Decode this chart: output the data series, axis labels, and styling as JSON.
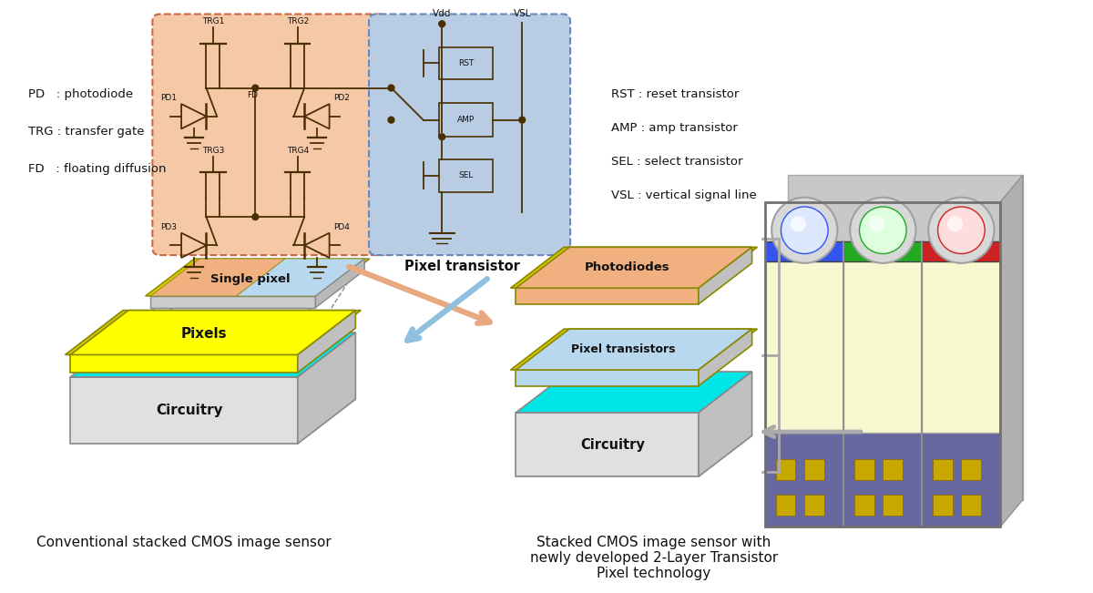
{
  "bg_color": "#ffffff",
  "left_label": "Conventional stacked CMOS image sensor",
  "right_label": "Stacked CMOS image sensor with\nnewly developed 2-Layer Transistor\nPixel technology",
  "left_abbrev": [
    "PD   : photodiode",
    "TRG : transfer gate",
    "FD   : floating diffusion"
  ],
  "right_abbrev": [
    "RST : reset transistor",
    "AMP : amp transistor",
    "SEL : select transistor",
    "VSL : vertical signal line"
  ],
  "circuit_bg_pink": "#f5c8a8",
  "circuit_bg_blue": "#b8cce4",
  "circuit_border_pink": "#cc6644",
  "circuit_border_blue": "#6688bb",
  "wire_color": "#4a3000",
  "yellow_border": "#d4c400",
  "pixel_yellow": "#ffff00",
  "pixel_orange": "#f0b080",
  "pixel_blue_light": "#b8d8f0",
  "circuitry_cyan": "#00e5e5",
  "box_gray_top": "#e0e0e0",
  "box_gray_side": "#c8c8c8",
  "box_gray_front": "#d8d8d8",
  "box_outline": "#888888",
  "arrow_salmon": "#e8a880",
  "arrow_blue_lt": "#90c0e0",
  "arrow_gray": "#aaaaaa",
  "chip_board_color": "#7070a8",
  "chip_circuit_yellow": "#c8a800",
  "chip_pixel_pale": "#f8f8d0",
  "chip_blue_strip": "#3355ee",
  "chip_green_strip": "#22aa22",
  "chip_red_strip": "#cc2222",
  "chip_lens_gray": "#cccccc",
  "chip_side_gray": "#909090",
  "chip_base_gray": "#787878"
}
